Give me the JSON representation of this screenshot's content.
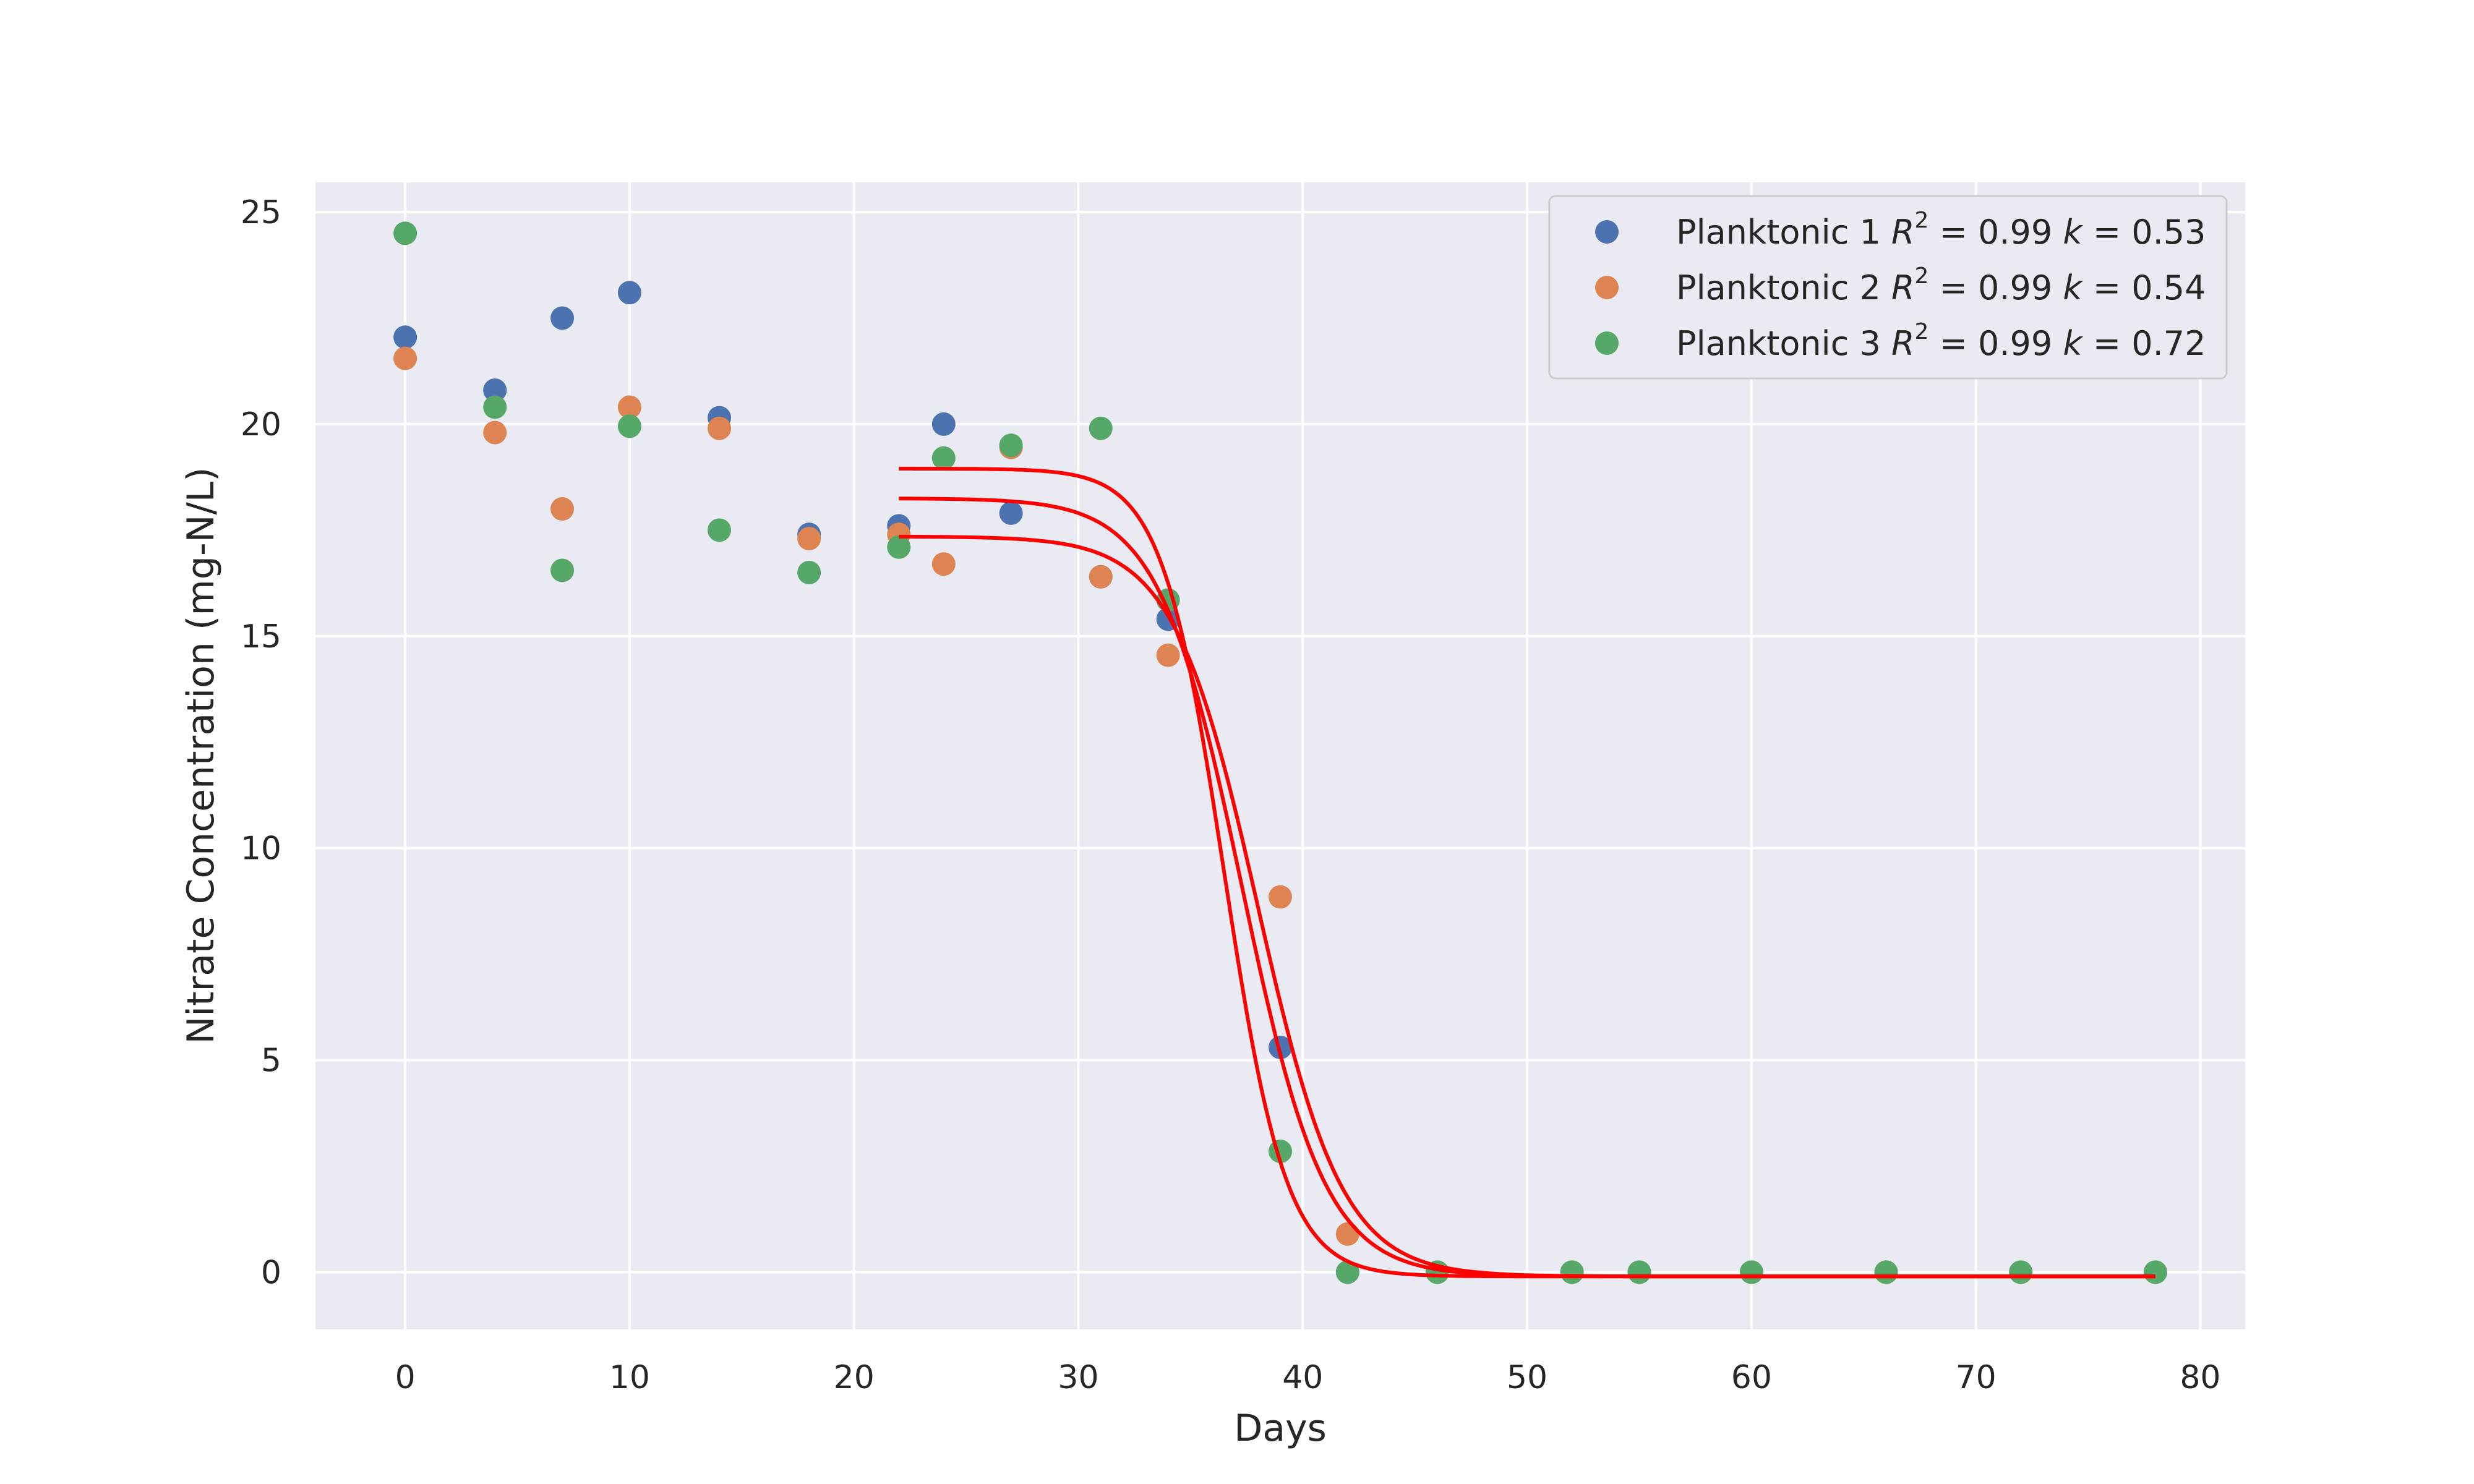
{
  "chart_data": {
    "type": "scatter",
    "xlabel": "Days",
    "ylabel": "Nitrate Concentration (mg-N/L)",
    "xlim": [
      -4,
      82
    ],
    "ylim": [
      -1.35,
      25.7
    ],
    "xticks": [
      "0",
      "10",
      "20",
      "30",
      "40",
      "50",
      "60",
      "70",
      "80"
    ],
    "yticks": [
      "0",
      "5",
      "10",
      "15",
      "20",
      "25"
    ],
    "grid": true,
    "legend_position": "top-right",
    "colors": {
      "background": "#eaeaf2",
      "grid": "#ffffff",
      "fit_line": "#ff0000"
    },
    "series": [
      {
        "name": "Planktonic 1",
        "r2": "0.99",
        "k": "0.53",
        "color": "#4c72b0",
        "x": [
          0,
          4,
          7,
          10,
          14,
          18,
          22,
          24,
          27,
          31,
          34,
          39,
          42,
          46,
          52,
          55,
          60,
          66,
          72,
          78
        ],
        "y": [
          22.05,
          20.8,
          22.5,
          23.1,
          20.15,
          17.4,
          17.6,
          20.0,
          17.9,
          16.4,
          15.4,
          5.3,
          0.0,
          0.0,
          0.0,
          0.0,
          0.0,
          0.0,
          0.0,
          0.0
        ]
      },
      {
        "name": "Planktonic 2",
        "r2": "0.99",
        "k": "0.54",
        "color": "#dd8452",
        "x": [
          0,
          4,
          7,
          10,
          14,
          18,
          22,
          24,
          27,
          31,
          34,
          39,
          42,
          46,
          52,
          55,
          60,
          66,
          72,
          78
        ],
        "y": [
          21.55,
          19.8,
          18.0,
          20.4,
          19.9,
          17.3,
          17.4,
          16.7,
          19.45,
          16.4,
          14.55,
          8.85,
          0.9,
          0.0,
          0.0,
          0.0,
          0.0,
          0.0,
          0.0,
          0.0
        ]
      },
      {
        "name": "Planktonic 3",
        "r2": "0.99",
        "k": "0.72",
        "color": "#55a868",
        "x": [
          0,
          4,
          7,
          10,
          14,
          18,
          22,
          24,
          27,
          31,
          34,
          39,
          42,
          46,
          52,
          55,
          60,
          66,
          72,
          78
        ],
        "y": [
          24.5,
          20.4,
          16.55,
          19.95,
          17.5,
          16.5,
          17.1,
          19.2,
          19.5,
          19.9,
          15.85,
          2.85,
          0.0,
          0.0,
          0.0,
          0.0,
          0.0,
          0.0,
          0.0,
          0.0
        ]
      }
    ],
    "fit_curves": [
      {
        "model": "logistic",
        "x_range": [
          22,
          78
        ],
        "plateau": 17.35,
        "k": 0.53,
        "midpoint": 38.0,
        "baseline": -0.1,
        "x": [
          22,
          26,
          30,
          32,
          34,
          35,
          36,
          37,
          38,
          39,
          40,
          41,
          42,
          44,
          46,
          48,
          52,
          60,
          70,
          78
        ],
        "y": [
          17.34,
          17.2,
          16.58,
          15.76,
          14.11,
          12.8,
          10.82,
          8.22,
          5.38,
          3.05,
          1.53,
          0.71,
          0.32,
          0.05,
          -0.04,
          -0.07,
          -0.09,
          -0.1,
          -0.1,
          -0.1
        ]
      },
      {
        "model": "logistic",
        "x_range": [
          22,
          78
        ],
        "plateau": 18.25,
        "k": 0.54,
        "midpoint": 37.3,
        "baseline": -0.1,
        "x": [
          22,
          26,
          30,
          32,
          34,
          35,
          36,
          37,
          38,
          39,
          40,
          41,
          42,
          44,
          46,
          48,
          52,
          60,
          70,
          78
        ],
        "y": [
          18.24,
          18.09,
          17.33,
          16.37,
          14.47,
          12.51,
          10.13,
          7.37,
          4.86,
          2.88,
          1.55,
          0.79,
          0.37,
          0.05,
          -0.07,
          -0.09,
          -0.1,
          -0.1,
          -0.1,
          -0.1
        ]
      },
      {
        "model": "logistic",
        "x_range": [
          22,
          78
        ],
        "plateau": 18.95,
        "k": 0.72,
        "midpoint": 36.5,
        "baseline": -0.1,
        "x": [
          22,
          26,
          30,
          32,
          34,
          35,
          36,
          37,
          38,
          39,
          40,
          41,
          42,
          44,
          46,
          48,
          52,
          60,
          70,
          78
        ],
        "y": [
          18.95,
          18.93,
          18.77,
          18.21,
          16.41,
          14.22,
          10.6,
          7.36,
          3.98,
          1.64,
          0.65,
          0.2,
          0.04,
          -0.09,
          -0.1,
          -0.1,
          -0.1,
          -0.1,
          -0.1,
          -0.1
        ]
      }
    ]
  }
}
